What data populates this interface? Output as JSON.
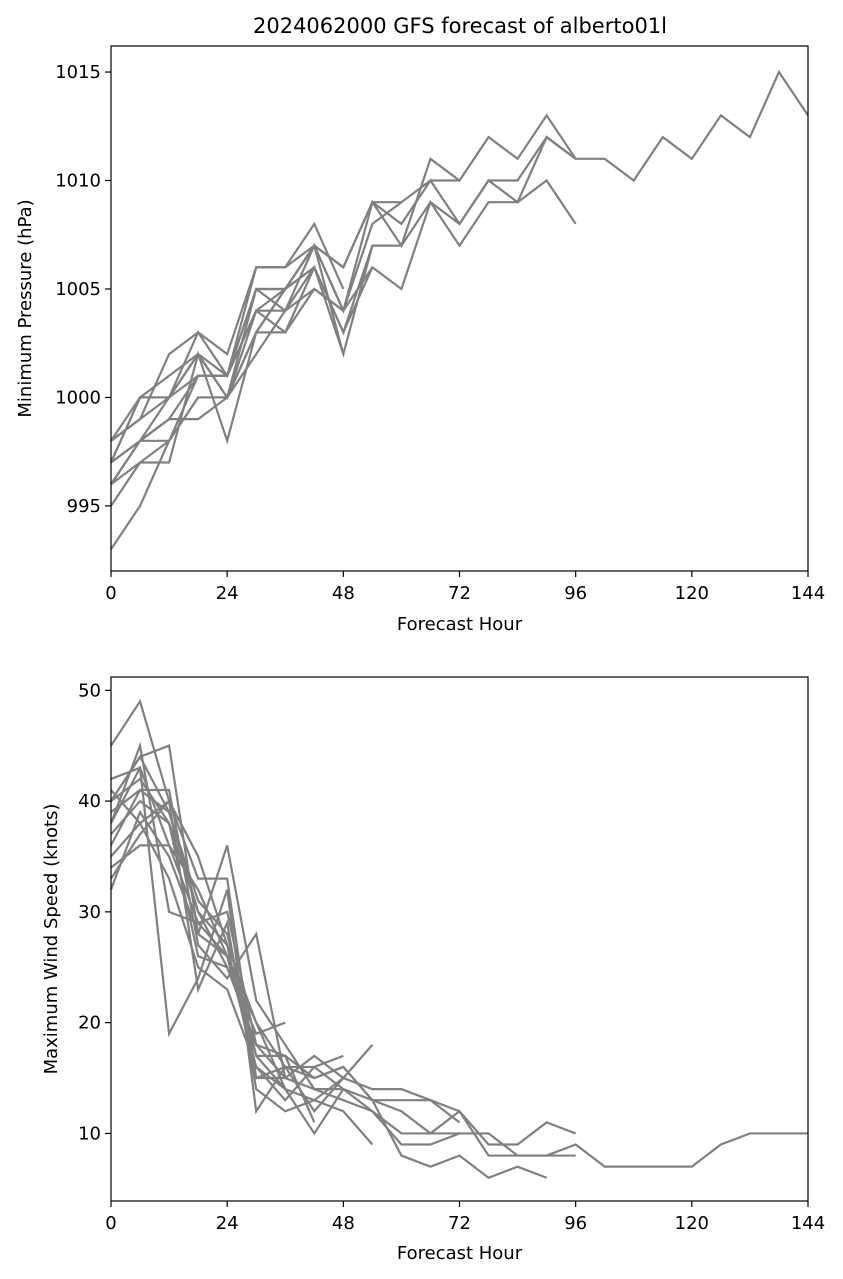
{
  "figure": {
    "title": "2024062000 GFS forecast of alberto01l",
    "line_color": "#808080"
  },
  "chart_data": [
    {
      "type": "line",
      "title": "2024062000 GFS forecast of alberto01l",
      "xlabel": "Forecast Hour",
      "ylabel": "Minimum Pressure (hPa)",
      "xlim": [
        0,
        144
      ],
      "ylim": [
        992,
        1016.2
      ],
      "xticks": [
        0,
        24,
        48,
        72,
        96,
        120,
        144
      ],
      "yticks": [
        995,
        1000,
        1005,
        1010,
        1015
      ],
      "grid": false,
      "legend": "none",
      "series": [
        {
          "x": [
            0,
            6,
            12,
            18,
            24,
            30,
            36,
            42,
            48,
            54,
            60,
            66,
            72,
            78,
            84,
            90,
            96,
            102,
            108,
            114,
            120,
            126,
            132,
            138,
            144
          ],
          "y": [
            997,
            1000,
            1000,
            1002,
            1000,
            1003,
            1005,
            1007,
            1006,
            1009,
            1008,
            1010,
            1008,
            1010,
            1010,
            1012,
            1011,
            1011,
            1010,
            1012,
            1011,
            1013,
            1012,
            1015,
            1013
          ]
        },
        {
          "x": [
            0,
            6,
            12,
            18,
            24,
            30,
            36,
            42,
            48,
            54,
            60,
            66,
            72,
            78,
            84,
            90,
            96
          ],
          "y": [
            998,
            999,
            1000,
            1003,
            1001,
            1005,
            1005,
            1007,
            1004,
            1009,
            1007,
            1011,
            1010,
            1012,
            1011,
            1013,
            1011
          ]
        },
        {
          "x": [
            0,
            6,
            12,
            18,
            24,
            30,
            36,
            42,
            48,
            54,
            60,
            66,
            72,
            78,
            84,
            90,
            96
          ],
          "y": [
            996,
            998,
            999,
            1001,
            1001,
            1004,
            1005,
            1006,
            1003,
            1007,
            1007,
            1009,
            1008,
            1010,
            1009,
            1010,
            1008
          ]
        },
        {
          "x": [
            0,
            6,
            12,
            18,
            24,
            30,
            36,
            42,
            48,
            54,
            60,
            66,
            72,
            78,
            84,
            90,
            96
          ],
          "y": [
            997,
            998,
            998,
            1000,
            1000,
            1003,
            1003,
            1005,
            1004,
            1006,
            1005,
            1009,
            1007,
            1009,
            1009,
            1012,
            1011
          ]
        },
        {
          "x": [
            0,
            6,
            12,
            18,
            24,
            30,
            36,
            42,
            48,
            54,
            60,
            66,
            72
          ],
          "y": [
            993,
            995,
            998,
            1001,
            1001,
            1006,
            1006,
            1007,
            1006,
            1009,
            1009,
            1010,
            1010
          ]
        },
        {
          "x": [
            0,
            6,
            12,
            18,
            24,
            30,
            36,
            42,
            48
          ],
          "y": [
            998,
            999,
            1002,
            1003,
            1002,
            1006,
            1006,
            1008,
            1005
          ]
        },
        {
          "x": [
            0,
            6,
            12,
            18,
            24,
            30,
            36,
            42,
            48,
            54,
            60
          ],
          "y": [
            996,
            997,
            998,
            1000,
            1000,
            1002,
            1004,
            1005,
            1004,
            1008,
            1009
          ]
        },
        {
          "x": [
            0,
            6,
            12,
            18,
            24,
            30,
            36,
            42,
            48,
            54
          ],
          "y": [
            995,
            997,
            997,
            1002,
            998,
            1003,
            1005,
            1006,
            1002,
            1007
          ]
        },
        {
          "x": [
            0,
            6,
            12,
            18,
            24,
            30,
            36,
            42,
            48,
            54
          ],
          "y": [
            997,
            1000,
            1001,
            1002,
            1000,
            1004,
            1004,
            1006,
            1003,
            1006
          ]
        },
        {
          "x": [
            0,
            6,
            12,
            18,
            24,
            30,
            36,
            42,
            48
          ],
          "y": [
            998,
            1000,
            1000,
            1001,
            1001,
            1005,
            1004,
            1007,
            1004
          ]
        },
        {
          "x": [
            0,
            6,
            12,
            18,
            24,
            30,
            36,
            42,
            48
          ],
          "y": [
            996,
            998,
            999,
            999,
            1000,
            1005,
            1005,
            1007,
            1002
          ]
        },
        {
          "x": [
            0,
            6,
            12,
            18,
            24,
            30,
            36,
            42
          ],
          "y": [
            997,
            998,
            1000,
            1002,
            1001,
            1004,
            1003,
            1006
          ]
        }
      ]
    },
    {
      "type": "line",
      "title": "",
      "xlabel": "Forecast Hour",
      "ylabel": "Maximum Wind Speed (knots)",
      "xlim": [
        0,
        144
      ],
      "ylim": [
        3.9,
        51.2
      ],
      "xticks": [
        0,
        24,
        48,
        72,
        96,
        120,
        144
      ],
      "yticks": [
        10,
        20,
        30,
        40,
        50
      ],
      "grid": false,
      "legend": "none",
      "series": [
        {
          "x": [
            0,
            6,
            12,
            18,
            24,
            30,
            36,
            42,
            48,
            54,
            60,
            66,
            72,
            78,
            84,
            90,
            96,
            102,
            108,
            114,
            120,
            126,
            132,
            138,
            144
          ],
          "y": [
            40,
            44,
            39,
            30,
            27,
            20,
            16,
            16,
            14,
            12,
            10,
            10,
            12,
            8,
            8,
            8,
            9,
            7,
            7,
            7,
            7,
            9,
            10,
            10,
            10
          ]
        },
        {
          "x": [
            0,
            6,
            12,
            18,
            24,
            30,
            36,
            42,
            48,
            54,
            60,
            66,
            72,
            78,
            84,
            90,
            96
          ],
          "y": [
            45,
            49,
            40,
            33,
            33,
            15,
            15,
            17,
            15,
            14,
            14,
            13,
            12,
            9,
            9,
            11,
            10
          ]
        },
        {
          "x": [
            0,
            6,
            12,
            18,
            24,
            30,
            36,
            42,
            48,
            54,
            60,
            66,
            72,
            78,
            84,
            90,
            96
          ],
          "y": [
            38,
            43,
            36,
            29,
            30,
            18,
            15,
            14,
            13,
            12,
            9,
            9,
            10,
            10,
            8,
            8,
            8
          ]
        },
        {
          "x": [
            0,
            6,
            12,
            18,
            24,
            30,
            36,
            42,
            48,
            54,
            60,
            66,
            72,
            78,
            84,
            90
          ],
          "y": [
            36,
            41,
            39,
            31,
            28,
            17,
            17,
            15,
            16,
            13,
            8,
            7,
            8,
            6,
            7,
            6
          ]
        },
        {
          "x": [
            0,
            6,
            12,
            18,
            24,
            30,
            36,
            42,
            48,
            54,
            60,
            66,
            72
          ],
          "y": [
            40,
            44,
            45,
            28,
            36,
            22,
            18,
            14,
            14,
            13,
            13,
            13,
            11
          ]
        },
        {
          "x": [
            0,
            6,
            12,
            18,
            24,
            30,
            36,
            42,
            48,
            54,
            60,
            66,
            72
          ],
          "y": [
            35,
            38,
            40,
            35,
            27,
            15,
            16,
            15,
            16,
            13,
            12,
            10,
            10
          ]
        },
        {
          "x": [
            0,
            6,
            12,
            18,
            24,
            30,
            36,
            42,
            48,
            54
          ],
          "y": [
            42,
            43,
            19,
            24,
            32,
            12,
            16,
            12,
            15,
            18
          ]
        },
        {
          "x": [
            0,
            6,
            12,
            18,
            24,
            30,
            36,
            42,
            48
          ],
          "y": [
            38,
            45,
            30,
            29,
            26,
            16,
            13,
            16,
            17
          ]
        },
        {
          "x": [
            0,
            6,
            12,
            18,
            24,
            30,
            36,
            42,
            48
          ],
          "y": [
            33,
            37,
            40,
            23,
            29,
            14,
            12,
            13,
            15
          ]
        },
        {
          "x": [
            0,
            6,
            12,
            18,
            24,
            30,
            36
          ],
          "y": [
            39,
            41,
            41,
            27,
            24,
            28,
            15
          ]
        },
        {
          "x": [
            0,
            6,
            12,
            18,
            24,
            30,
            36
          ],
          "y": [
            37,
            40,
            38,
            26,
            25,
            19,
            20
          ]
        },
        {
          "x": [
            0,
            6,
            12,
            18,
            24,
            30,
            36,
            42,
            48,
            54
          ],
          "y": [
            34,
            36,
            36,
            32,
            26,
            20,
            14,
            13,
            12,
            9
          ]
        },
        {
          "x": [
            0,
            6,
            12,
            18,
            24,
            30,
            36,
            42
          ],
          "y": [
            40,
            42,
            38,
            30,
            25,
            18,
            17,
            11
          ]
        },
        {
          "x": [
            0,
            6,
            12,
            18,
            24,
            30,
            36
          ],
          "y": [
            32,
            39,
            35,
            28,
            26,
            17,
            14
          ]
        },
        {
          "x": [
            0,
            6,
            12,
            18,
            24,
            30,
            36,
            42,
            48
          ],
          "y": [
            41,
            38,
            33,
            25,
            23,
            16,
            14,
            10,
            14
          ]
        }
      ]
    }
  ]
}
